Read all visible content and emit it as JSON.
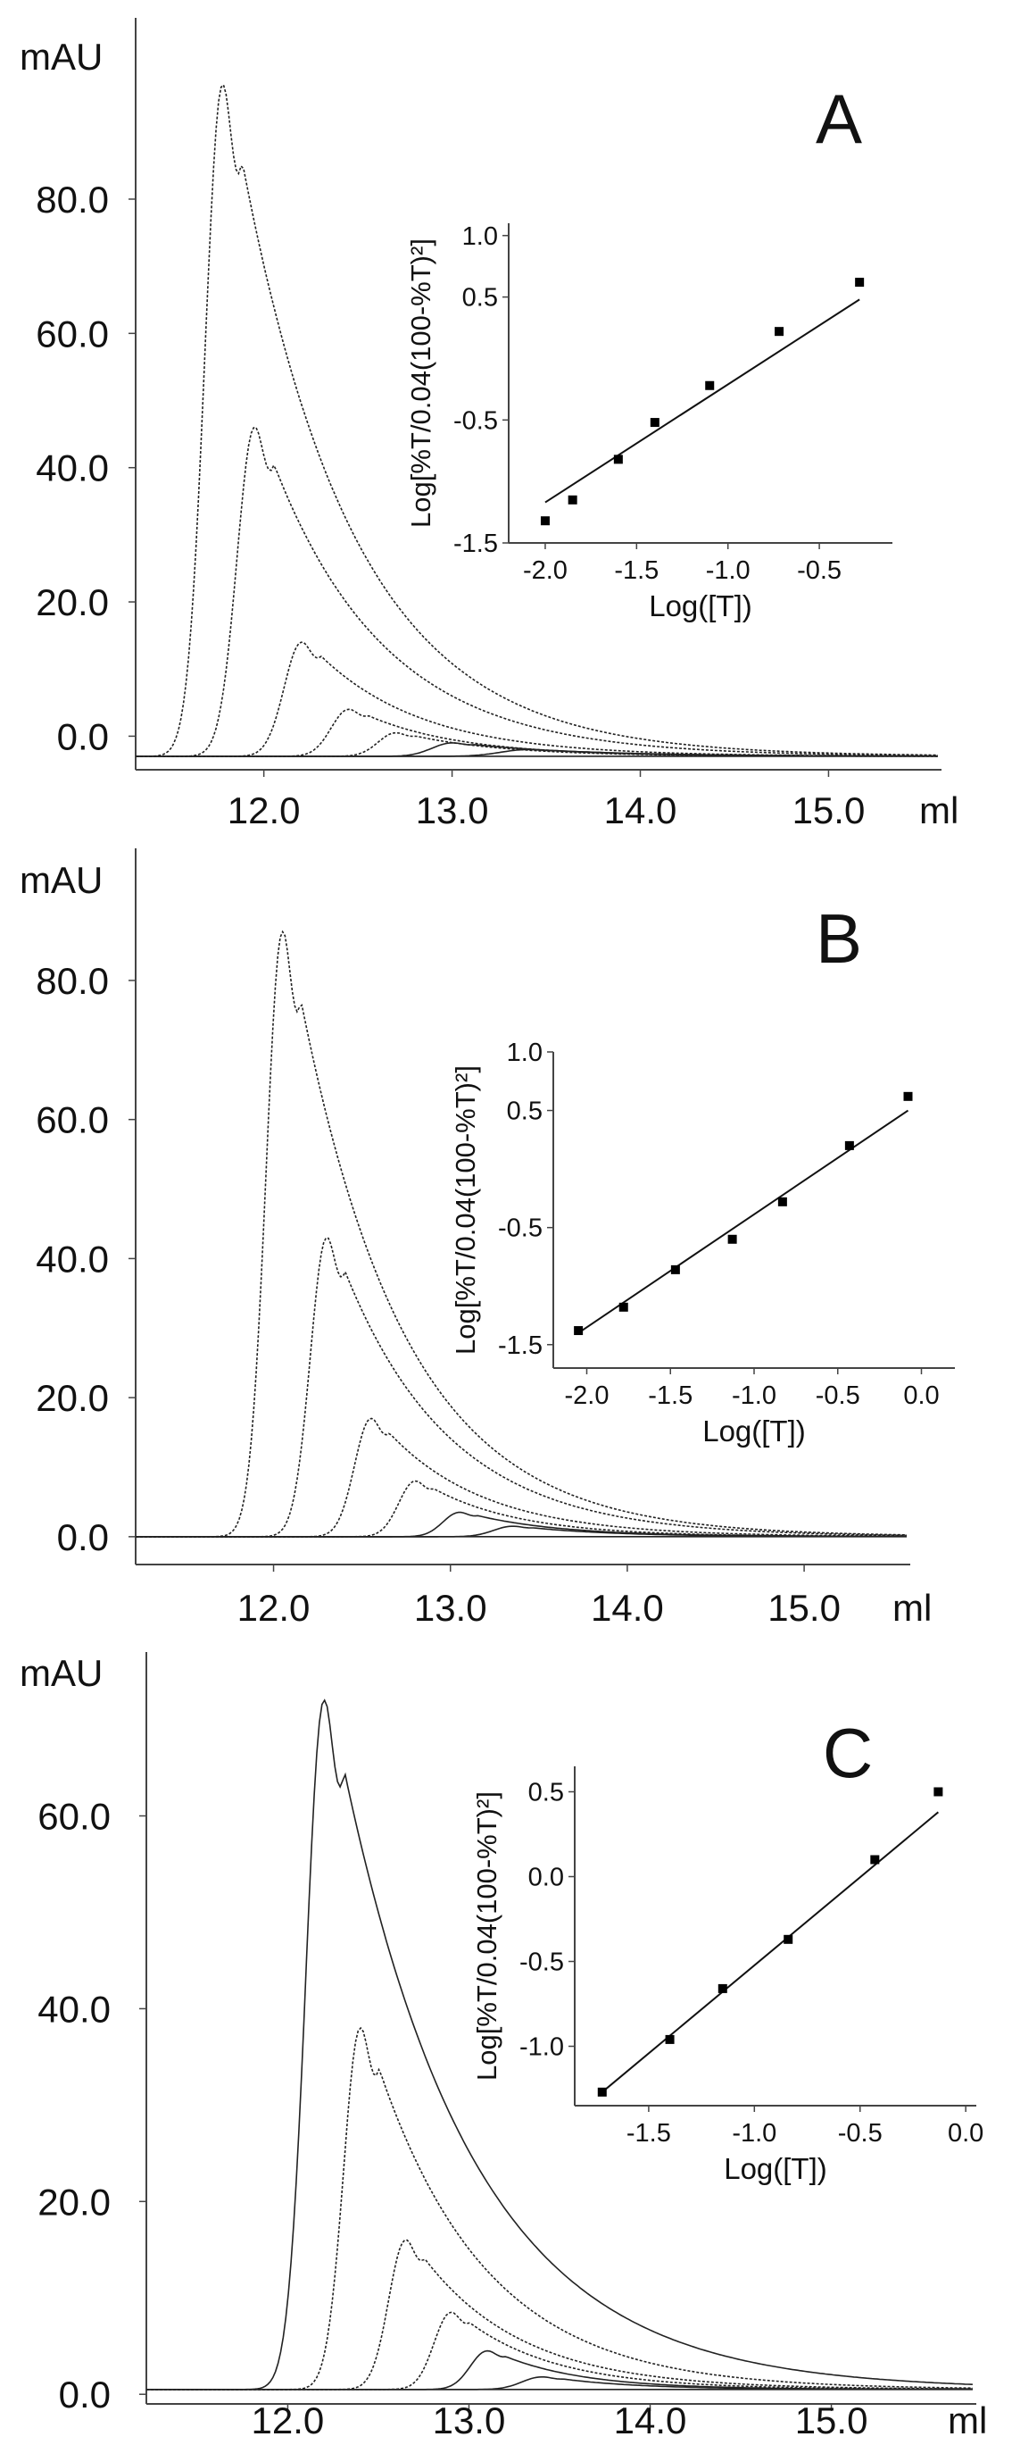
{
  "chart_data": [
    {
      "panel": "A",
      "type": "line",
      "ylabel": "mAU",
      "xlabel": "ml",
      "xticks": [
        "12.0",
        "13.0",
        "14.0",
        "15.0"
      ],
      "yticks": [
        "0.0",
        "20.0",
        "40.0",
        "60.0",
        "80.0"
      ],
      "xlim": [
        11.3,
        15.6
      ],
      "ylim": [
        -5,
        107
      ],
      "baseline": -3,
      "series": [
        {
          "peak_x": 11.78,
          "peak_y": 97,
          "w_rise": 0.13,
          "w_fall": 0.6,
          "dotted": true
        },
        {
          "peak_x": 11.95,
          "peak_y": 46,
          "w_rise": 0.13,
          "w_fall": 0.6,
          "dotted": true
        },
        {
          "peak_x": 12.2,
          "peak_y": 14,
          "w_rise": 0.13,
          "w_fall": 0.55,
          "dotted": true
        },
        {
          "peak_x": 12.45,
          "peak_y": 4,
          "w_rise": 0.13,
          "w_fall": 0.5,
          "dotted": true
        },
        {
          "peak_x": 12.7,
          "peak_y": 0.5,
          "w_rise": 0.13,
          "w_fall": 0.5,
          "dotted": true
        },
        {
          "peak_x": 13.0,
          "peak_y": -1,
          "w_rise": 0.15,
          "w_fall": 0.6,
          "dotted": false
        },
        {
          "peak_x": 13.4,
          "peak_y": -2,
          "w_rise": 0.2,
          "w_fall": 0.6,
          "dotted": false
        }
      ],
      "inset": {
        "xlabel": "Log([T])",
        "ylabel": "Log[%T/0.04(100-%T)²]",
        "xlim": [
          -2.2,
          -0.1
        ],
        "ylim": [
          -1.5,
          1.1
        ],
        "xticks": [
          "-2.0",
          "-1.5",
          "-1.0",
          "-0.5"
        ],
        "yticks": [
          "-1.5",
          "-0.5",
          "0.5",
          "1.0"
        ],
        "points": [
          [
            -2.0,
            -1.32
          ],
          [
            -1.85,
            -1.15
          ],
          [
            -1.6,
            -0.82
          ],
          [
            -1.4,
            -0.52
          ],
          [
            -1.1,
            -0.22
          ],
          [
            -0.72,
            0.22
          ],
          [
            -0.28,
            0.62
          ]
        ],
        "fit": [
          [
            -2.0,
            -1.17
          ],
          [
            -0.28,
            0.48
          ]
        ]
      }
    },
    {
      "panel": "B",
      "type": "line",
      "ylabel": "mAU",
      "xlabel": "ml",
      "xticks": [
        "12.0",
        "13.0",
        "14.0",
        "15.0"
      ],
      "yticks": [
        "0.0",
        "20.0",
        "40.0",
        "60.0",
        "80.0"
      ],
      "xlim": [
        11.2,
        15.6
      ],
      "ylim": [
        -4,
        99
      ],
      "baseline": 0,
      "series": [
        {
          "peak_x": 12.05,
          "peak_y": 87,
          "w_rise": 0.13,
          "w_fall": 0.6,
          "dotted": true
        },
        {
          "peak_x": 12.3,
          "peak_y": 43,
          "w_rise": 0.13,
          "w_fall": 0.6,
          "dotted": true
        },
        {
          "peak_x": 12.55,
          "peak_y": 17,
          "w_rise": 0.13,
          "w_fall": 0.55,
          "dotted": true
        },
        {
          "peak_x": 12.8,
          "peak_y": 8,
          "w_rise": 0.13,
          "w_fall": 0.5,
          "dotted": true
        },
        {
          "peak_x": 13.05,
          "peak_y": 3.5,
          "w_rise": 0.13,
          "w_fall": 0.5,
          "dotted": false
        },
        {
          "peak_x": 13.35,
          "peak_y": 1.5,
          "w_rise": 0.15,
          "w_fall": 0.5,
          "dotted": false
        }
      ],
      "inset": {
        "xlabel": "Log([T])",
        "ylabel": "Log[%T/0.04(100-%T)²]",
        "xlim": [
          -2.2,
          0.2
        ],
        "ylim": [
          -1.7,
          1.0
        ],
        "xticks": [
          "-2.0",
          "-1.5",
          "-1.0",
          "-0.5",
          "0.0"
        ],
        "yticks": [
          "-1.5",
          "-0.5",
          "0.5",
          "1.0"
        ],
        "points": [
          [
            -2.05,
            -1.38
          ],
          [
            -1.78,
            -1.18
          ],
          [
            -1.47,
            -0.86
          ],
          [
            -1.13,
            -0.6
          ],
          [
            -0.83,
            -0.28
          ],
          [
            -0.43,
            0.2
          ],
          [
            -0.08,
            0.62
          ]
        ],
        "fit": [
          [
            -2.05,
            -1.4
          ],
          [
            -0.08,
            0.5
          ]
        ]
      }
    },
    {
      "panel": "C",
      "type": "line",
      "ylabel": "mAU",
      "xlabel": "ml",
      "xticks": [
        "12.0",
        "13.0",
        "14.0",
        "15.0"
      ],
      "yticks": [
        "0.0",
        "20.0",
        "40.0",
        "60.0"
      ],
      "xlim": [
        11.2,
        15.8
      ],
      "ylim": [
        -1,
        77
      ],
      "baseline": 0.5,
      "series": [
        {
          "peak_x": 12.2,
          "peak_y": 72,
          "w_rise": 0.14,
          "w_fall": 0.72,
          "dotted": false
        },
        {
          "peak_x": 12.4,
          "peak_y": 38,
          "w_rise": 0.13,
          "w_fall": 0.6,
          "dotted": true
        },
        {
          "peak_x": 12.65,
          "peak_y": 16,
          "w_rise": 0.13,
          "w_fall": 0.55,
          "dotted": true
        },
        {
          "peak_x": 12.9,
          "peak_y": 8.5,
          "w_rise": 0.13,
          "w_fall": 0.5,
          "dotted": true
        },
        {
          "peak_x": 13.1,
          "peak_y": 4.5,
          "w_rise": 0.13,
          "w_fall": 0.45,
          "dotted": false
        },
        {
          "peak_x": 13.4,
          "peak_y": 1.8,
          "w_rise": 0.15,
          "w_fall": 0.45,
          "dotted": false
        }
      ],
      "inset": {
        "xlabel": "Log([T])",
        "ylabel": "Log[%T/0.04(100-%T)²]",
        "xlim": [
          -1.85,
          0.05
        ],
        "ylim": [
          -1.35,
          0.65
        ],
        "xticks": [
          "-1.5",
          "-1.0",
          "-0.5",
          "0.0"
        ],
        "yticks": [
          "-1.0",
          "-0.5",
          "0.0",
          "0.5"
        ],
        "points": [
          [
            -1.72,
            -1.27
          ],
          [
            -1.4,
            -0.96
          ],
          [
            -1.15,
            -0.66
          ],
          [
            -0.84,
            -0.37
          ],
          [
            -0.43,
            0.1
          ],
          [
            -0.13,
            0.5
          ]
        ],
        "fit": [
          [
            -1.72,
            -1.27
          ],
          [
            -0.13,
            0.38
          ]
        ]
      }
    }
  ]
}
